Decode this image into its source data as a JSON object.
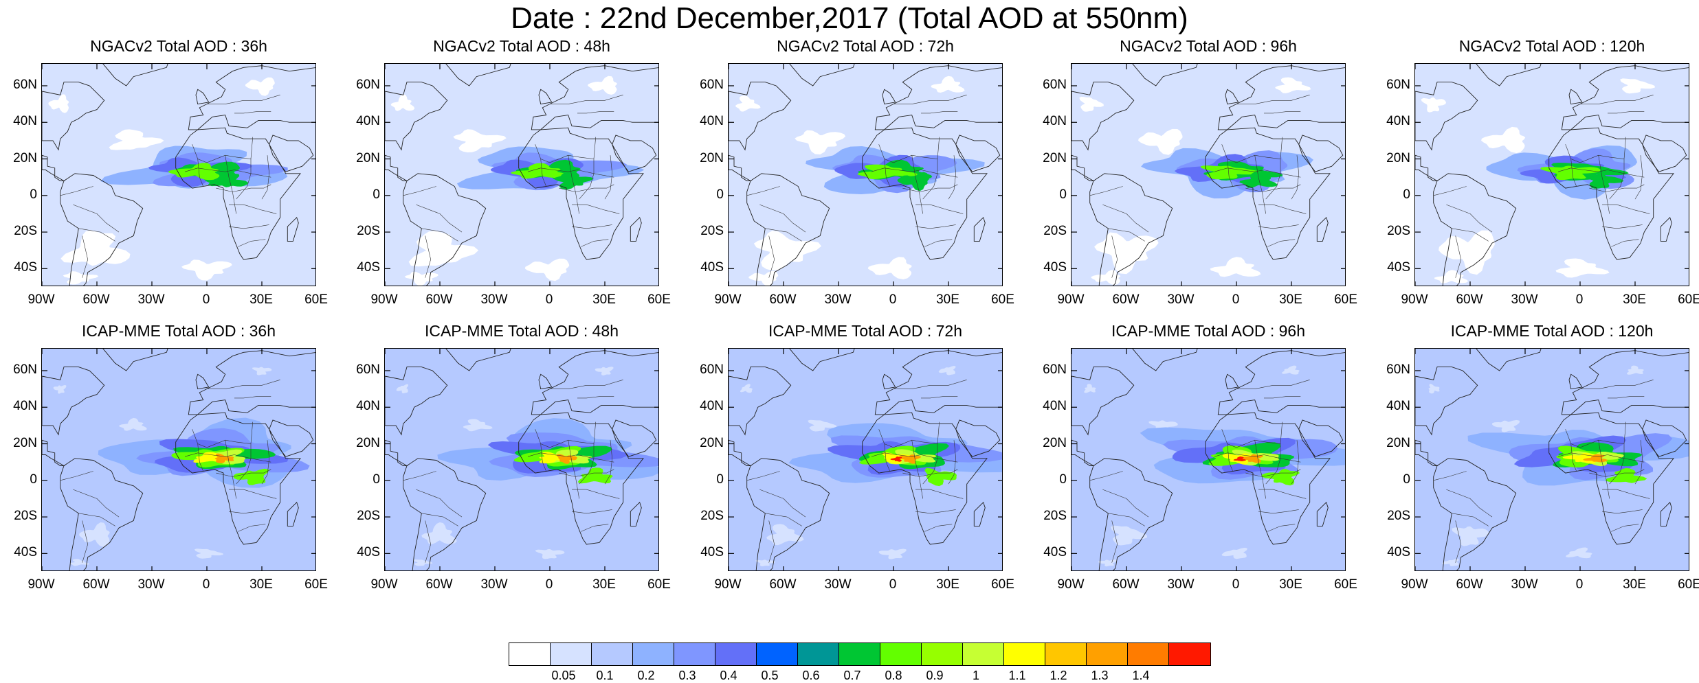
{
  "title": "Date : 22nd December,2017 (Total AOD at 550nm)",
  "panels": [
    {
      "title": "NGACv2 Total AOD : 36h",
      "model": "NGACv2",
      "lead": "36h",
      "intensity": 0.8
    },
    {
      "title": "NGACv2 Total AOD : 48h",
      "model": "NGACv2",
      "lead": "48h",
      "intensity": 0.8
    },
    {
      "title": "NGACv2 Total AOD : 72h",
      "model": "NGACv2",
      "lead": "72h",
      "intensity": 0.75
    },
    {
      "title": "NGACv2 Total AOD : 96h",
      "model": "NGACv2",
      "lead": "96h",
      "intensity": 0.7
    },
    {
      "title": "NGACv2 Total AOD : 120h",
      "model": "NGACv2",
      "lead": "120h",
      "intensity": 0.7
    },
    {
      "title": "ICAP-MME Total AOD : 36h",
      "model": "ICAP-MME",
      "lead": "36h",
      "intensity": 1.2
    },
    {
      "title": "ICAP-MME Total AOD : 48h",
      "model": "ICAP-MME",
      "lead": "48h",
      "intensity": 1.2
    },
    {
      "title": "ICAP-MME Total AOD : 72h",
      "model": "ICAP-MME",
      "lead": "72h",
      "intensity": 1.4
    },
    {
      "title": "ICAP-MME Total AOD : 96h",
      "model": "ICAP-MME",
      "lead": "96h",
      "intensity": 1.4
    },
    {
      "title": "ICAP-MME Total AOD : 120h",
      "model": "ICAP-MME",
      "lead": "120h",
      "intensity": 1.2
    }
  ],
  "axes": {
    "lon_range": [
      -90,
      60
    ],
    "lat_range": [
      -50,
      72
    ],
    "x_ticks": [
      {
        "value": -90,
        "label": "90W"
      },
      {
        "value": -60,
        "label": "60W"
      },
      {
        "value": -30,
        "label": "30W"
      },
      {
        "value": 0,
        "label": "0"
      },
      {
        "value": 30,
        "label": "30E"
      },
      {
        "value": 60,
        "label": "60E"
      }
    ],
    "y_ticks": [
      {
        "value": 60,
        "label": "60N"
      },
      {
        "value": 40,
        "label": "40N"
      },
      {
        "value": 20,
        "label": "20N"
      },
      {
        "value": 0,
        "label": "0"
      },
      {
        "value": -20,
        "label": "20S"
      },
      {
        "value": -40,
        "label": "40S"
      }
    ]
  },
  "colorbar": {
    "colors": [
      "#ffffff",
      "#d6e2ff",
      "#b5c9ff",
      "#8eb2ff",
      "#7f96ff",
      "#6370f8",
      "#0063ff",
      "#009696",
      "#00c633",
      "#63ff00",
      "#96ff00",
      "#c6ff33",
      "#ffff00",
      "#ffc600",
      "#ffa000",
      "#ff7c00",
      "#ff1900"
    ],
    "labels": [
      "0.05",
      "0.1",
      "0.2",
      "0.3",
      "0.4",
      "0.5",
      "0.6",
      "0.7",
      "0.8",
      "0.9",
      "1",
      "1.1",
      "1.2",
      "1.3",
      "1.4"
    ]
  }
}
